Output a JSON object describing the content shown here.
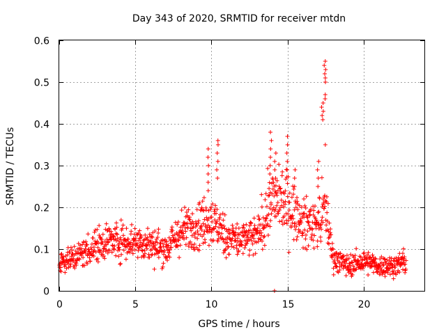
{
  "chart_data": {
    "type": "scatter",
    "title": "Day 343 of 2020, SRMTID for receiver mtdn",
    "xlabel": "GPS time / hours",
    "ylabel": "SRMTID / TECUs",
    "xlim": [
      0,
      24
    ],
    "ylim": [
      0,
      0.6
    ],
    "xticks": [
      0,
      5,
      10,
      15,
      20
    ],
    "yticks": [
      0,
      0.1,
      0.2,
      0.3,
      0.4,
      0.5,
      0.6
    ],
    "xtick_labels": [
      "0",
      "5",
      "10",
      "15",
      "20"
    ],
    "ytick_labels": [
      "0",
      "0.1",
      "0.2",
      "0.3",
      "0.4",
      "0.5",
      "0.6"
    ],
    "grid": true,
    "marker": "+",
    "color": "#ff0000",
    "series": [
      {
        "name": "mtdn",
        "trend": [
          [
            0.0,
            0.07
          ],
          [
            1.0,
            0.08
          ],
          [
            2.0,
            0.1
          ],
          [
            3.0,
            0.12
          ],
          [
            4.0,
            0.12
          ],
          [
            5.0,
            0.12
          ],
          [
            6.0,
            0.11
          ],
          [
            7.0,
            0.1
          ],
          [
            8.0,
            0.14
          ],
          [
            9.0,
            0.16
          ],
          [
            10.0,
            0.17
          ],
          [
            11.0,
            0.13
          ],
          [
            12.0,
            0.12
          ],
          [
            13.0,
            0.13
          ],
          [
            14.0,
            0.22
          ],
          [
            15.0,
            0.21
          ],
          [
            16.0,
            0.16
          ],
          [
            17.0,
            0.16
          ],
          [
            17.5,
            0.2
          ],
          [
            18.0,
            0.08
          ],
          [
            19.0,
            0.06
          ],
          [
            20.0,
            0.07
          ],
          [
            21.0,
            0.06
          ],
          [
            22.0,
            0.06
          ],
          [
            22.8,
            0.07
          ]
        ],
        "spikes": [
          {
            "x": 9.8,
            "values": [
              0.34,
              0.32,
              0.3,
              0.28,
              0.26,
              0.24
            ]
          },
          {
            "x": 10.4,
            "values": [
              0.36,
              0.35,
              0.33,
              0.31,
              0.29,
              0.27
            ]
          },
          {
            "x": 13.9,
            "values": [
              0.38,
              0.36,
              0.34,
              0.32,
              0.3,
              0.28
            ]
          },
          {
            "x": 14.2,
            "values": [
              0.33,
              0.31,
              0.29,
              0.27
            ]
          },
          {
            "x": 15.0,
            "values": [
              0.37,
              0.35,
              0.33,
              0.31,
              0.29
            ]
          },
          {
            "x": 15.5,
            "values": [
              0.29,
              0.27,
              0.25
            ]
          },
          {
            "x": 17.0,
            "values": [
              0.31,
              0.29,
              0.27,
              0.25
            ]
          },
          {
            "x": 17.3,
            "values": [
              0.43,
              0.42,
              0.41,
              0.45,
              0.44
            ]
          },
          {
            "x": 17.45,
            "values": [
              0.55,
              0.54,
              0.53,
              0.52,
              0.51,
              0.5,
              0.47,
              0.46,
              0.35
            ]
          }
        ],
        "outliers": [
          [
            14.15,
            0.0
          ]
        ]
      }
    ]
  }
}
